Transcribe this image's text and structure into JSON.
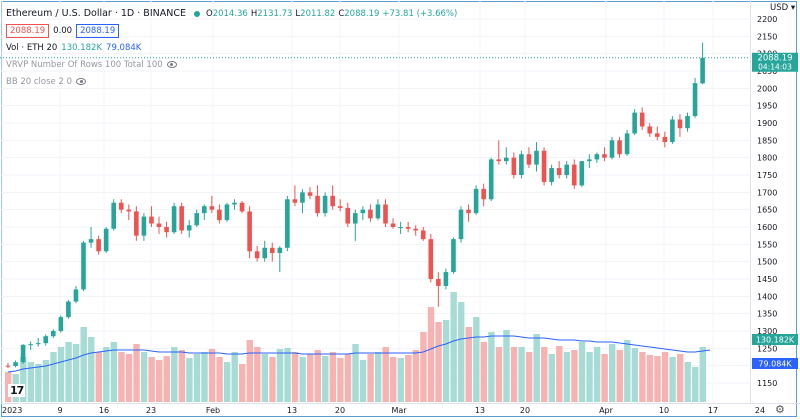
{
  "header": {
    "symbol_title": "Ethereum / U.S. Dollar · 1D · BINANCE",
    "open_label": "O",
    "open": "2014.36",
    "high_label": "H",
    "high": "2131.73",
    "low_label": "L",
    "low": "2011.82",
    "close_label": "C",
    "close": "2088.19",
    "change": "+73.81 (+3.66%)",
    "sell_price": "2088.19",
    "spread": "0.00",
    "buy_price": "2088.19"
  },
  "indicators": {
    "volume_label": "Vol · ETH 20",
    "volume_value": "130.182K",
    "volume_ma": "79.084K",
    "vrvp_label": "VRVP Number Of Rows 100 Total 100",
    "bb_label": "BB 20 close 2 0"
  },
  "price_axis": {
    "currency": "USD",
    "ticks": [
      2200,
      2150,
      2100,
      2050,
      2000,
      1950,
      1900,
      1850,
      1800,
      1750,
      1700,
      1650,
      1600,
      1550,
      1500,
      1450,
      1400,
      1350,
      1300,
      1250,
      1200,
      1150
    ],
    "last_price": "2088.19",
    "countdown": "04:14:03",
    "volume_label": "130.182K",
    "volume_ma_label": "79.084K"
  },
  "time_axis": {
    "labels": [
      "2023",
      "9",
      "16",
      "23",
      "Feb",
      "13",
      "20",
      "Mar",
      "13",
      "20",
      "Apr",
      "10",
      "17",
      "24"
    ]
  },
  "chart_data": {
    "type": "candlestick",
    "price_range": [
      1150,
      2200
    ],
    "candles": [
      {
        "o": 1200,
        "h": 1208,
        "l": 1193,
        "c": 1199
      },
      {
        "o": 1199,
        "h": 1215,
        "l": 1195,
        "c": 1210
      },
      {
        "o": 1210,
        "h": 1262,
        "l": 1205,
        "c": 1260
      },
      {
        "o": 1260,
        "h": 1270,
        "l": 1245,
        "c": 1262
      },
      {
        "o": 1262,
        "h": 1280,
        "l": 1255,
        "c": 1265
      },
      {
        "o": 1265,
        "h": 1290,
        "l": 1258,
        "c": 1285
      },
      {
        "o": 1285,
        "h": 1305,
        "l": 1280,
        "c": 1300
      },
      {
        "o": 1300,
        "h": 1345,
        "l": 1295,
        "c": 1340
      },
      {
        "o": 1340,
        "h": 1390,
        "l": 1335,
        "c": 1385
      },
      {
        "o": 1385,
        "h": 1430,
        "l": 1380,
        "c": 1420
      },
      {
        "o": 1420,
        "h": 1560,
        "l": 1415,
        "c": 1555
      },
      {
        "o": 1555,
        "h": 1600,
        "l": 1540,
        "c": 1565
      },
      {
        "o": 1565,
        "h": 1575,
        "l": 1520,
        "c": 1530
      },
      {
        "o": 1530,
        "h": 1600,
        "l": 1525,
        "c": 1595
      },
      {
        "o": 1595,
        "h": 1680,
        "l": 1590,
        "c": 1670
      },
      {
        "o": 1670,
        "h": 1680,
        "l": 1640,
        "c": 1650
      },
      {
        "o": 1650,
        "h": 1665,
        "l": 1620,
        "c": 1645
      },
      {
        "o": 1645,
        "h": 1660,
        "l": 1560,
        "c": 1575
      },
      {
        "o": 1575,
        "h": 1640,
        "l": 1560,
        "c": 1630
      },
      {
        "o": 1630,
        "h": 1660,
        "l": 1600,
        "c": 1610
      },
      {
        "o": 1610,
        "h": 1630,
        "l": 1580,
        "c": 1600
      },
      {
        "o": 1600,
        "h": 1615,
        "l": 1570,
        "c": 1585
      },
      {
        "o": 1585,
        "h": 1670,
        "l": 1580,
        "c": 1660
      },
      {
        "o": 1660,
        "h": 1670,
        "l": 1580,
        "c": 1590
      },
      {
        "o": 1590,
        "h": 1620,
        "l": 1570,
        "c": 1605
      },
      {
        "o": 1605,
        "h": 1650,
        "l": 1600,
        "c": 1640
      },
      {
        "o": 1640,
        "h": 1665,
        "l": 1620,
        "c": 1660
      },
      {
        "o": 1660,
        "h": 1690,
        "l": 1640,
        "c": 1650
      },
      {
        "o": 1650,
        "h": 1665,
        "l": 1610,
        "c": 1620
      },
      {
        "o": 1620,
        "h": 1670,
        "l": 1615,
        "c": 1665
      },
      {
        "o": 1665,
        "h": 1680,
        "l": 1650,
        "c": 1670
      },
      {
        "o": 1670,
        "h": 1675,
        "l": 1640,
        "c": 1645
      },
      {
        "o": 1645,
        "h": 1660,
        "l": 1510,
        "c": 1530
      },
      {
        "o": 1530,
        "h": 1545,
        "l": 1500,
        "c": 1510
      },
      {
        "o": 1510,
        "h": 1560,
        "l": 1500,
        "c": 1540
      },
      {
        "o": 1540,
        "h": 1555,
        "l": 1500,
        "c": 1525
      },
      {
        "o": 1525,
        "h": 1545,
        "l": 1470,
        "c": 1540
      },
      {
        "o": 1540,
        "h": 1690,
        "l": 1530,
        "c": 1680
      },
      {
        "o": 1680,
        "h": 1720,
        "l": 1660,
        "c": 1670
      },
      {
        "o": 1670,
        "h": 1710,
        "l": 1640,
        "c": 1700
      },
      {
        "o": 1700,
        "h": 1715,
        "l": 1680,
        "c": 1690
      },
      {
        "o": 1690,
        "h": 1720,
        "l": 1630,
        "c": 1640
      },
      {
        "o": 1640,
        "h": 1700,
        "l": 1630,
        "c": 1690
      },
      {
        "o": 1690,
        "h": 1720,
        "l": 1650,
        "c": 1660
      },
      {
        "o": 1660,
        "h": 1680,
        "l": 1645,
        "c": 1655
      },
      {
        "o": 1655,
        "h": 1670,
        "l": 1600,
        "c": 1610
      },
      {
        "o": 1610,
        "h": 1650,
        "l": 1560,
        "c": 1640
      },
      {
        "o": 1640,
        "h": 1660,
        "l": 1620,
        "c": 1650
      },
      {
        "o": 1650,
        "h": 1665,
        "l": 1615,
        "c": 1625
      },
      {
        "o": 1625,
        "h": 1680,
        "l": 1620,
        "c": 1665
      },
      {
        "o": 1665,
        "h": 1680,
        "l": 1600,
        "c": 1610
      },
      {
        "o": 1610,
        "h": 1625,
        "l": 1595,
        "c": 1600
      },
      {
        "o": 1600,
        "h": 1615,
        "l": 1580,
        "c": 1600
      },
      {
        "o": 1600,
        "h": 1615,
        "l": 1585,
        "c": 1595
      },
      {
        "o": 1595,
        "h": 1605,
        "l": 1575,
        "c": 1590
      },
      {
        "o": 1590,
        "h": 1600,
        "l": 1560,
        "c": 1565
      },
      {
        "o": 1565,
        "h": 1580,
        "l": 1440,
        "c": 1450
      },
      {
        "o": 1450,
        "h": 1470,
        "l": 1370,
        "c": 1430
      },
      {
        "o": 1430,
        "h": 1480,
        "l": 1420,
        "c": 1470
      },
      {
        "o": 1470,
        "h": 1570,
        "l": 1465,
        "c": 1565
      },
      {
        "o": 1565,
        "h": 1660,
        "l": 1555,
        "c": 1650
      },
      {
        "o": 1650,
        "h": 1665,
        "l": 1615,
        "c": 1640
      },
      {
        "o": 1640,
        "h": 1720,
        "l": 1635,
        "c": 1710
      },
      {
        "o": 1710,
        "h": 1725,
        "l": 1660,
        "c": 1680
      },
      {
        "o": 1680,
        "h": 1800,
        "l": 1675,
        "c": 1795
      },
      {
        "o": 1795,
        "h": 1850,
        "l": 1780,
        "c": 1790
      },
      {
        "o": 1790,
        "h": 1830,
        "l": 1780,
        "c": 1800
      },
      {
        "o": 1800,
        "h": 1815,
        "l": 1740,
        "c": 1750
      },
      {
        "o": 1750,
        "h": 1820,
        "l": 1740,
        "c": 1810
      },
      {
        "o": 1810,
        "h": 1830,
        "l": 1770,
        "c": 1780
      },
      {
        "o": 1780,
        "h": 1845,
        "l": 1760,
        "c": 1820
      },
      {
        "o": 1820,
        "h": 1830,
        "l": 1720,
        "c": 1730
      },
      {
        "o": 1730,
        "h": 1780,
        "l": 1720,
        "c": 1770
      },
      {
        "o": 1770,
        "h": 1790,
        "l": 1740,
        "c": 1750
      },
      {
        "o": 1750,
        "h": 1790,
        "l": 1740,
        "c": 1780
      },
      {
        "o": 1780,
        "h": 1795,
        "l": 1710,
        "c": 1720
      },
      {
        "o": 1720,
        "h": 1790,
        "l": 1715,
        "c": 1790
      },
      {
        "o": 1790,
        "h": 1810,
        "l": 1770,
        "c": 1795
      },
      {
        "o": 1795,
        "h": 1815,
        "l": 1785,
        "c": 1810
      },
      {
        "o": 1810,
        "h": 1830,
        "l": 1790,
        "c": 1800
      },
      {
        "o": 1800,
        "h": 1860,
        "l": 1795,
        "c": 1850
      },
      {
        "o": 1850,
        "h": 1860,
        "l": 1800,
        "c": 1810
      },
      {
        "o": 1810,
        "h": 1880,
        "l": 1805,
        "c": 1870
      },
      {
        "o": 1870,
        "h": 1940,
        "l": 1865,
        "c": 1930
      },
      {
        "o": 1930,
        "h": 1945,
        "l": 1880,
        "c": 1890
      },
      {
        "o": 1890,
        "h": 1900,
        "l": 1860,
        "c": 1870
      },
      {
        "o": 1870,
        "h": 1890,
        "l": 1850,
        "c": 1860
      },
      {
        "o": 1860,
        "h": 1875,
        "l": 1830,
        "c": 1845
      },
      {
        "o": 1845,
        "h": 1920,
        "l": 1840,
        "c": 1910
      },
      {
        "o": 1910,
        "h": 1925,
        "l": 1860,
        "c": 1885
      },
      {
        "o": 1885,
        "h": 1930,
        "l": 1875,
        "c": 1920
      },
      {
        "o": 1920,
        "h": 2030,
        "l": 1915,
        "c": 2015
      },
      {
        "o": 2014.36,
        "h": 2131.73,
        "l": 2011.82,
        "c": 2088.19
      }
    ],
    "volume_relative": [
      30,
      28,
      45,
      40,
      38,
      42,
      50,
      55,
      60,
      58,
      75,
      65,
      50,
      55,
      60,
      50,
      48,
      58,
      50,
      45,
      42,
      46,
      55,
      52,
      44,
      48,
      50,
      53,
      45,
      40,
      50,
      38,
      62,
      55,
      48,
      45,
      53,
      54,
      50,
      45,
      48,
      52,
      46,
      50,
      44,
      48,
      58,
      42,
      48,
      50,
      55,
      45,
      44,
      47,
      52,
      70,
      95,
      80,
      82,
      110,
      100,
      75,
      85,
      60,
      70,
      55,
      72,
      55,
      55,
      50,
      68,
      55,
      48,
      56,
      50,
      52,
      60,
      50,
      55,
      48,
      58,
      52,
      62,
      54,
      50,
      47,
      46,
      50,
      45,
      48,
      40,
      35,
      55,
      60
    ],
    "volume_ma_relative": [
      30,
      31,
      33,
      34,
      35,
      36,
      38,
      40,
      42,
      44,
      47,
      49,
      50,
      51,
      52,
      52,
      52,
      52,
      52,
      51,
      50,
      50,
      50,
      50,
      49,
      49,
      49,
      49,
      49,
      48,
      48,
      48,
      49,
      49,
      49,
      49,
      49,
      49,
      49,
      48,
      48,
      48,
      48,
      48,
      48,
      48,
      49,
      49,
      49,
      49,
      49,
      49,
      49,
      49,
      49,
      50,
      53,
      56,
      58,
      61,
      63,
      64,
      65,
      65,
      66,
      66,
      66,
      66,
      65,
      64,
      64,
      64,
      63,
      62,
      62,
      62,
      61,
      61,
      60,
      60,
      60,
      59,
      58,
      57,
      56,
      55,
      54,
      53,
      52,
      51,
      50,
      50,
      51,
      52
    ]
  }
}
